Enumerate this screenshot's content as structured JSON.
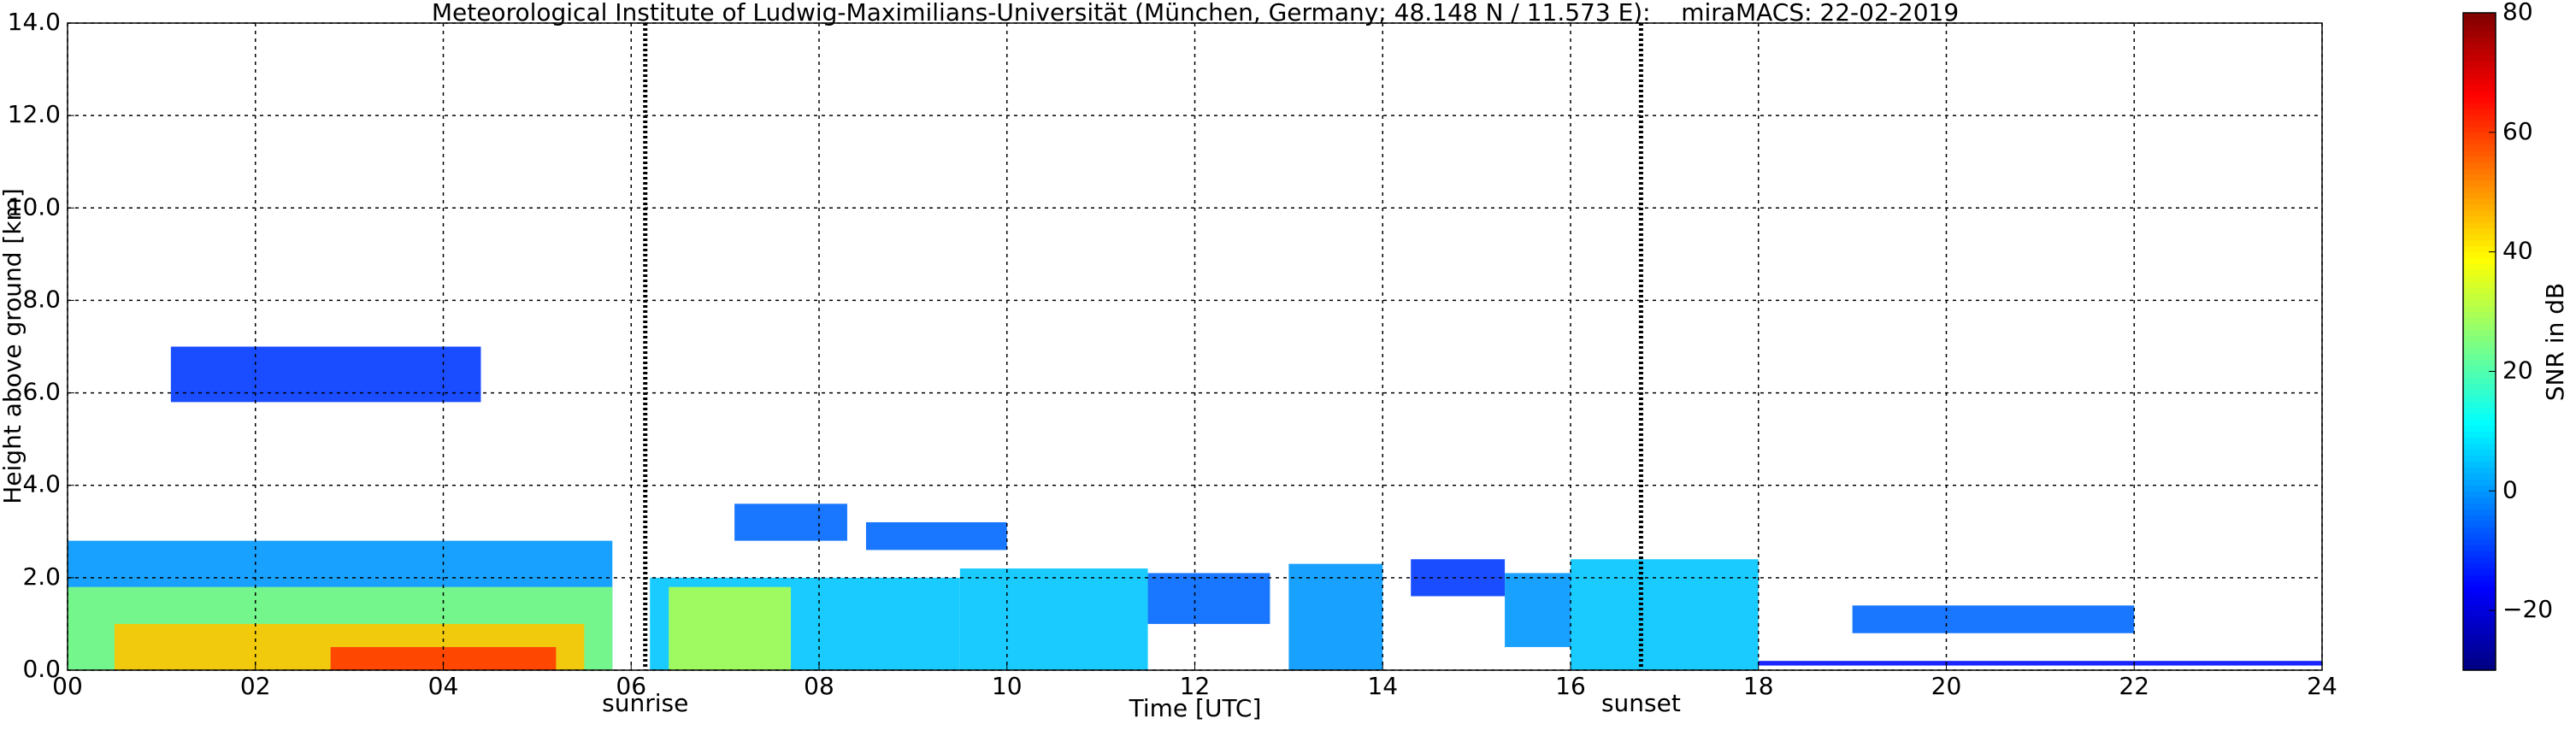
{
  "chart_data": {
    "type": "radar",
    "title": "Meteorological Institute of Ludwig-Maximilians-Universität (München, Germany; 48.148 N / 11.573 E):    miraMACS: 22-02-2019",
    "x_label": "Time [UTC]",
    "y_label": "Height above ground [km]",
    "colorbar_label": "SNR in dB",
    "xlim": [
      0,
      24
    ],
    "xticks": [
      {
        "value": 0,
        "label": "00"
      },
      {
        "value": 2,
        "label": "02"
      },
      {
        "value": 4,
        "label": "04"
      },
      {
        "value": 6,
        "label": "06"
      },
      {
        "value": 8,
        "label": "08"
      },
      {
        "value": 10,
        "label": "10"
      },
      {
        "value": 12,
        "label": "12"
      },
      {
        "value": 14,
        "label": "14"
      },
      {
        "value": 16,
        "label": "16"
      },
      {
        "value": 18,
        "label": "18"
      },
      {
        "value": 20,
        "label": "20"
      },
      {
        "value": 22,
        "label": "22"
      },
      {
        "value": 24,
        "label": "24"
      }
    ],
    "ylim": [
      0,
      14
    ],
    "yticks": [
      {
        "value": 0,
        "label": "0.0"
      },
      {
        "value": 2,
        "label": "2.0"
      },
      {
        "value": 4,
        "label": "4.0"
      },
      {
        "value": 6,
        "label": "6.0"
      },
      {
        "value": 8,
        "label": "8.0"
      },
      {
        "value": 10,
        "label": "10.0"
      },
      {
        "value": 12,
        "label": "12.0"
      },
      {
        "value": 14,
        "label": "14.0"
      }
    ],
    "clim": [
      -30,
      80
    ],
    "cticks": [
      {
        "value": -20,
        "label": "−20"
      },
      0,
      20,
      40,
      60,
      80
    ],
    "colormap": "jet",
    "grid": true,
    "events": [
      {
        "name": "sunrise",
        "x": 6.15
      },
      {
        "name": "sunset",
        "x": 16.75
      }
    ],
    "patches": [
      {
        "x": [
          1.1,
          4.4
        ],
        "y": [
          5.8,
          7.0
        ],
        "value": -10
      },
      {
        "x": [
          0,
          5.8
        ],
        "y": [
          0,
          2.8
        ],
        "value": 0
      },
      {
        "x": [
          0,
          5.8
        ],
        "y": [
          0,
          1.8
        ],
        "value": 25
      },
      {
        "x": [
          0.5,
          5.5
        ],
        "y": [
          0,
          1.0
        ],
        "value": 45
      },
      {
        "x": [
          2.8,
          5.2
        ],
        "y": [
          0,
          0.5
        ],
        "value": 60
      },
      {
        "x": [
          6.2,
          9.5
        ],
        "y": [
          0,
          2.0
        ],
        "value": 5
      },
      {
        "x": [
          6.4,
          7.7
        ],
        "y": [
          0,
          1.8
        ],
        "value": 30
      },
      {
        "x": [
          7.1,
          8.3
        ],
        "y": [
          2.8,
          3.6
        ],
        "value": -5
      },
      {
        "x": [
          8.5,
          10.0
        ],
        "y": [
          2.6,
          3.2
        ],
        "value": -5
      },
      {
        "x": [
          9.5,
          11.5
        ],
        "y": [
          0,
          2.2
        ],
        "value": 5
      },
      {
        "x": [
          11.5,
          12.8
        ],
        "y": [
          1.0,
          2.1
        ],
        "value": -5
      },
      {
        "x": [
          13.0,
          14.0
        ],
        "y": [
          0,
          2.3
        ],
        "value": 0
      },
      {
        "x": [
          14.3,
          15.3
        ],
        "y": [
          1.6,
          2.4
        ],
        "value": -10
      },
      {
        "x": [
          15.3,
          16.0
        ],
        "y": [
          0.5,
          2.1
        ],
        "value": 0
      },
      {
        "x": [
          16.0,
          18.0
        ],
        "y": [
          0,
          2.4
        ],
        "value": 5
      },
      {
        "x": [
          19.0,
          22.0
        ],
        "y": [
          0.8,
          1.4
        ],
        "value": -5
      },
      {
        "x": [
          18.0,
          24.0
        ],
        "y": [
          0.1,
          0.2
        ],
        "value": -15
      }
    ]
  }
}
